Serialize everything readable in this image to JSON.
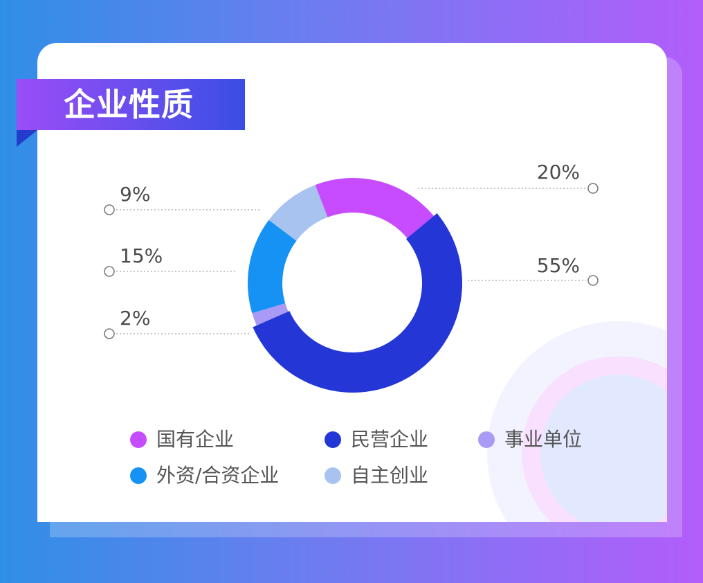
{
  "title": "企业性质",
  "chart_data": {
    "type": "pie",
    "series": [
      {
        "name": "企业性质",
        "values": [
          20,
          55,
          2,
          15,
          9
        ]
      }
    ],
    "categories": [
      "国有企业",
      "民营企业",
      "事业单位",
      "外资/合资企业",
      "自主创业"
    ],
    "labels": [
      "20%",
      "55%",
      "2%",
      "15%",
      "9%"
    ],
    "legend_position": "bottom",
    "grid": false
  },
  "colors": {
    "国有企业": "#c84cff",
    "民营企业": "#2437d6",
    "事业单位": "#a89af5",
    "外资/合资企业": "#1592f3",
    "自主创业": "#a8c3ef"
  }
}
